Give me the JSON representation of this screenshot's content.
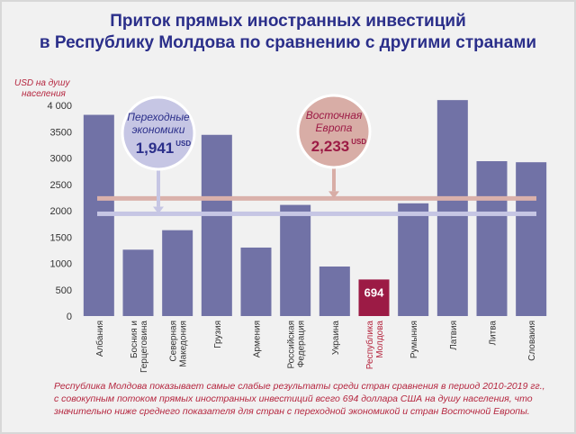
{
  "title_line1": "Приток прямых иностранных инвестиций",
  "title_line2": "в Республику Молдова по сравнению с другими странами",
  "unit_line1": "USD на душу",
  "unit_line2": "населения",
  "colors": {
    "bar": "#7172a6",
    "highlight_bar": "#9c1b45",
    "title": "#2b2f8a",
    "red_text": "#b5263f",
    "transition_line": "#c6c6e4",
    "eastern_europe_line": "#dab1ab"
  },
  "bubbles": {
    "transition": {
      "label_line1": "Переходные",
      "label_line2": "экономики",
      "value": "1,941",
      "unit": "USD"
    },
    "eastern_europe": {
      "label_line1": "Восточная",
      "label_line2": "Европа",
      "value": "2,233",
      "unit": "USD"
    }
  },
  "caption": {
    "line1": "Республика Молдова показывает самые слабые результаты среди стран сравнения в период 2010-2019 гг.,",
    "line2": "с совокупным потоком прямых иностранных инвестиций всего 694 доллара США на душу населения, что",
    "line3": "значительно ниже среднего показателя для стран с переходной экономикой и стран Восточной Европы."
  },
  "chart_data": {
    "type": "bar",
    "categories": [
      [
        "Албания"
      ],
      [
        "Босния и",
        "Герцеговина"
      ],
      [
        "Северная",
        "Македония"
      ],
      [
        "Грузия"
      ],
      [
        "Армения"
      ],
      [
        "Российская",
        "Федерация"
      ],
      [
        "Украина"
      ],
      [
        "Республика",
        "Молдова"
      ],
      [
        "Румыния"
      ],
      [
        "Латвия"
      ],
      [
        "Литва"
      ],
      [
        "Словакия"
      ]
    ],
    "values": [
      3820,
      1260,
      1630,
      3440,
      1300,
      2110,
      940,
      694,
      2140,
      4100,
      2940,
      2920
    ],
    "highlight_index": 7,
    "highlight_label": "694",
    "ylim": [
      0,
      4000
    ],
    "yticks": [
      "0",
      "500",
      "1000",
      "1500",
      "2000",
      "2500",
      "3000",
      "3500",
      "4 000"
    ],
    "ytick_values": [
      0,
      500,
      1000,
      1500,
      2000,
      2500,
      3000,
      3500,
      4000
    ],
    "reference_lines": [
      {
        "name": "Переходные экономики",
        "value": 1941
      },
      {
        "name": "Восточная Европа",
        "value": 2233
      }
    ],
    "grid": false
  }
}
